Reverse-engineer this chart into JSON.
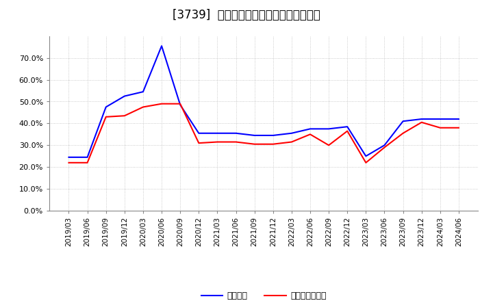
{
  "title": "[3739]  固定比率、固定長期適合率の推移",
  "x_labels": [
    "2019/03",
    "2019/06",
    "2019/09",
    "2019/12",
    "2020/03",
    "2020/06",
    "2020/09",
    "2020/12",
    "2021/03",
    "2021/06",
    "2021/09",
    "2021/12",
    "2022/03",
    "2022/06",
    "2022/09",
    "2022/12",
    "2023/03",
    "2023/06",
    "2023/09",
    "2023/12",
    "2024/03",
    "2024/06"
  ],
  "fixed_ratio": [
    24.5,
    24.5,
    47.5,
    52.5,
    54.5,
    75.5,
    48.5,
    35.5,
    35.5,
    35.5,
    34.5,
    34.5,
    35.5,
    37.5,
    37.5,
    38.5,
    25.0,
    30.0,
    41.0,
    42.0,
    42.0,
    42.0
  ],
  "fixed_long_ratio": [
    22.0,
    22.0,
    43.0,
    43.5,
    47.5,
    49.0,
    49.0,
    31.0,
    31.5,
    31.5,
    30.5,
    30.5,
    31.5,
    35.0,
    30.0,
    36.5,
    22.0,
    29.0,
    35.5,
    40.5,
    38.0,
    38.0
  ],
  "line_color_blue": "#0000ff",
  "line_color_red": "#ff0000",
  "bg_color": "#ffffff",
  "grid_color": "#aaaaaa",
  "ylim": [
    0,
    80
  ],
  "yticks": [
    0,
    10,
    20,
    30,
    40,
    50,
    60,
    70
  ],
  "legend_blue": "固定比率",
  "legend_red": "固定長期適合率",
  "title_fontsize": 12,
  "tick_fontsize": 7.5,
  "ytick_fontsize": 8,
  "legend_fontsize": 9
}
